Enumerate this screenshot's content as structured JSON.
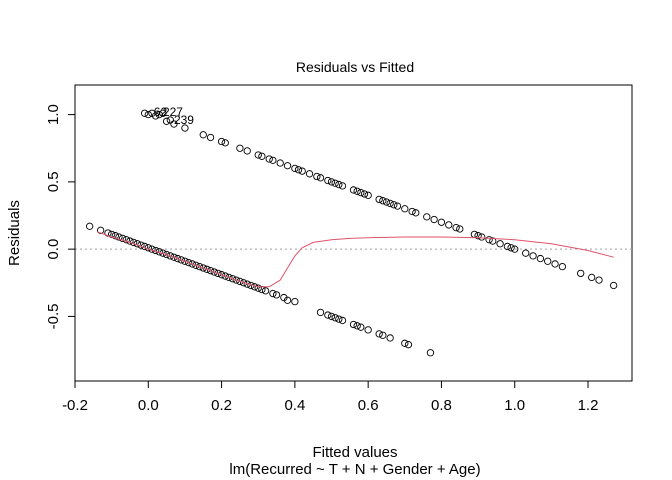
{
  "chart_data": {
    "type": "scatter",
    "title": "Residuals vs Fitted",
    "xlabel": "Fitted values",
    "sublabel": "lm(Recurred ~ T + N + Gender + Age)",
    "ylabel": "Residuals",
    "xlim": [
      -0.2,
      1.32
    ],
    "ylim": [
      -0.98,
      1.22
    ],
    "xticks": [
      -0.2,
      0.0,
      0.2,
      0.4,
      0.6,
      0.8,
      1.0,
      1.2
    ],
    "xtick_labels": [
      "-0.2",
      "0.0",
      "0.2",
      "0.4",
      "0.6",
      "0.8",
      "1.0",
      "1.2"
    ],
    "yticks": [
      -0.5,
      0.0,
      0.5,
      1.0
    ],
    "ytick_labels": [
      "-0.5",
      "0.0",
      "0.5",
      "1.0"
    ],
    "reference_line_y": 0,
    "colors": {
      "points": "#000000",
      "smooth": "#df536b",
      "reference": "#a0a0a0"
    },
    "series": [
      {
        "role": "points-upper",
        "x": [
          -0.01,
          0.0,
          0.01,
          0.02,
          0.03,
          0.04,
          0.05,
          0.06,
          0.07,
          0.1,
          0.15,
          0.17,
          0.2,
          0.21,
          0.25,
          0.27,
          0.3,
          0.31,
          0.33,
          0.34,
          0.36,
          0.38,
          0.4,
          0.41,
          0.42,
          0.44,
          0.46,
          0.47,
          0.49,
          0.5,
          0.51,
          0.52,
          0.53,
          0.56,
          0.57,
          0.58,
          0.59,
          0.6,
          0.63,
          0.64,
          0.65,
          0.66,
          0.67,
          0.68,
          0.7,
          0.72,
          0.73,
          0.76,
          0.78,
          0.8,
          0.82,
          0.84,
          0.85,
          0.89,
          0.9,
          0.91,
          0.93,
          0.94,
          0.96,
          0.98,
          0.99,
          1.0,
          1.03,
          1.05,
          1.07,
          1.09,
          1.11,
          1.13,
          1.18,
          1.21,
          1.23,
          1.27
        ],
        "y": [
          1.01,
          1.0,
          1.01,
          0.99,
          1.0,
          1.01,
          0.95,
          0.96,
          0.93,
          0.9,
          0.85,
          0.83,
          0.8,
          0.79,
          0.75,
          0.73,
          0.7,
          0.69,
          0.67,
          0.66,
          0.64,
          0.62,
          0.6,
          0.59,
          0.58,
          0.56,
          0.54,
          0.53,
          0.51,
          0.5,
          0.49,
          0.48,
          0.47,
          0.44,
          0.43,
          0.42,
          0.41,
          0.4,
          0.37,
          0.36,
          0.35,
          0.34,
          0.33,
          0.32,
          0.3,
          0.28,
          0.27,
          0.24,
          0.22,
          0.2,
          0.18,
          0.16,
          0.15,
          0.11,
          0.1,
          0.09,
          0.07,
          0.06,
          0.04,
          0.02,
          0.01,
          0.0,
          -0.03,
          -0.05,
          -0.07,
          -0.09,
          -0.11,
          -0.13,
          -0.18,
          -0.21,
          -0.23,
          -0.27
        ]
      },
      {
        "role": "points-lower",
        "x": [
          -0.16,
          -0.13,
          -0.11,
          -0.1,
          -0.09,
          -0.08,
          -0.07,
          -0.06,
          -0.05,
          -0.04,
          -0.03,
          -0.02,
          -0.01,
          0.0,
          0.01,
          0.02,
          0.03,
          0.04,
          0.05,
          0.06,
          0.07,
          0.08,
          0.09,
          0.1,
          0.11,
          0.12,
          0.13,
          0.14,
          0.15,
          0.16,
          0.17,
          0.18,
          0.19,
          0.2,
          0.21,
          0.22,
          0.23,
          0.24,
          0.25,
          0.26,
          0.27,
          0.28,
          0.29,
          0.3,
          0.31,
          0.32,
          0.34,
          0.35,
          0.37,
          0.38,
          0.4,
          0.47,
          0.49,
          0.5,
          0.51,
          0.52,
          0.53,
          0.56,
          0.57,
          0.58,
          0.6,
          0.63,
          0.64,
          0.66,
          0.7,
          0.71,
          0.77
        ],
        "y": [
          0.17,
          0.14,
          0.12,
          0.11,
          0.1,
          0.09,
          0.08,
          0.07,
          0.06,
          0.05,
          0.04,
          0.03,
          0.02,
          0.01,
          0.0,
          -0.01,
          -0.02,
          -0.03,
          -0.04,
          -0.05,
          -0.06,
          -0.07,
          -0.08,
          -0.09,
          -0.1,
          -0.11,
          -0.12,
          -0.13,
          -0.14,
          -0.15,
          -0.16,
          -0.17,
          -0.18,
          -0.19,
          -0.2,
          -0.21,
          -0.22,
          -0.23,
          -0.24,
          -0.25,
          -0.26,
          -0.27,
          -0.28,
          -0.29,
          -0.3,
          -0.31,
          -0.33,
          -0.34,
          -0.36,
          -0.38,
          -0.39,
          -0.47,
          -0.49,
          -0.5,
          -0.51,
          -0.52,
          -0.53,
          -0.56,
          -0.57,
          -0.58,
          -0.6,
          -0.63,
          -0.64,
          -0.66,
          -0.7,
          -0.71,
          -0.77
        ]
      },
      {
        "role": "smoother",
        "x": [
          -0.14,
          -0.1,
          -0.05,
          0.0,
          0.05,
          0.1,
          0.15,
          0.2,
          0.25,
          0.3,
          0.33,
          0.36,
          0.38,
          0.4,
          0.42,
          0.45,
          0.5,
          0.55,
          0.6,
          0.7,
          0.8,
          0.9,
          1.0,
          1.1,
          1.2,
          1.27
        ],
        "y": [
          0.13,
          0.09,
          0.05,
          0.0,
          -0.04,
          -0.09,
          -0.14,
          -0.19,
          -0.24,
          -0.28,
          -0.28,
          -0.23,
          -0.14,
          -0.05,
          0.01,
          0.05,
          0.07,
          0.08,
          0.085,
          0.09,
          0.09,
          0.085,
          0.07,
          0.04,
          -0.01,
          -0.06
        ]
      }
    ],
    "annotations": [
      {
        "x": 0.015,
        "y": 1.02,
        "text": "62"
      },
      {
        "x": 0.04,
        "y": 1.02,
        "text": "227"
      },
      {
        "x": 0.07,
        "y": 0.96,
        "text": "239"
      }
    ]
  }
}
